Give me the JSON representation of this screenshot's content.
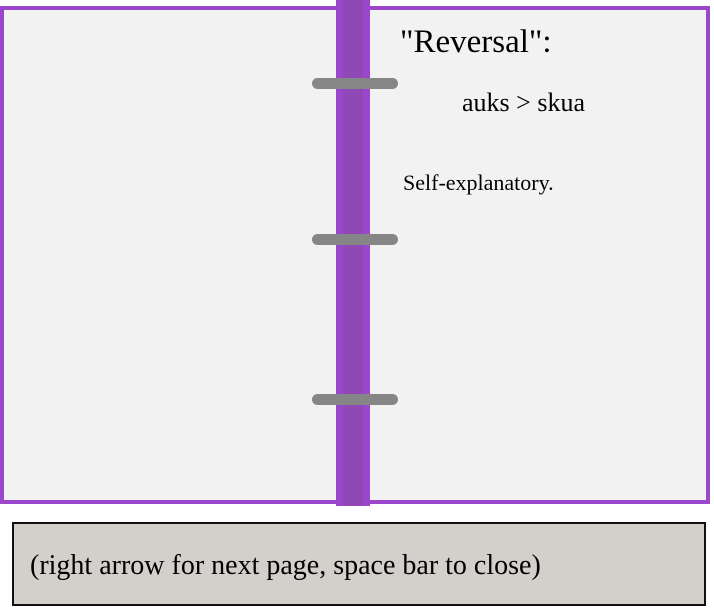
{
  "notebook": {
    "entry": {
      "title": "\"Reversal\":",
      "example": "auks > skua",
      "description": "Self-explanatory."
    },
    "ring_count": 3
  },
  "instructions": {
    "text": "(right arrow for next page, space bar to close)"
  },
  "colors": {
    "binder": "#9b47cc",
    "spine_core": "#8e49b6",
    "page": "#f3f2f3",
    "ring": "#868686",
    "instruction_bg": "#d3cfcb"
  }
}
